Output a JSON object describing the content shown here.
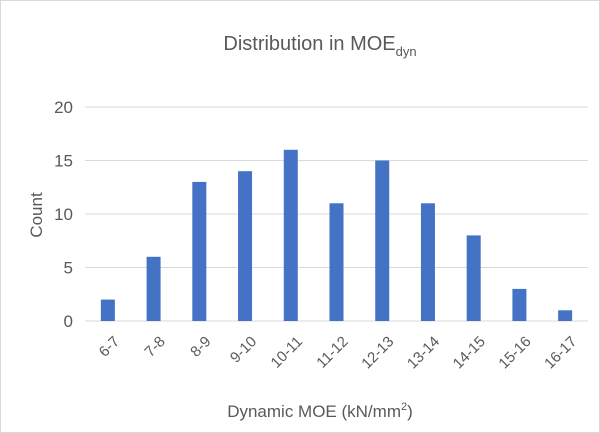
{
  "chart_data": {
    "type": "bar",
    "title": {
      "main": "Distribution in MOE",
      "subscript": "dyn"
    },
    "xlabel": {
      "main": "Dynamic MOE (kN/mm",
      "superscript": "2",
      "suffix": ")"
    },
    "ylabel": "Count",
    "categories": [
      "6-7",
      "7-8",
      "8-9",
      "9-10",
      "10-11",
      "11-12",
      "12-13",
      "13-14",
      "14-15",
      "15-16",
      "16-17"
    ],
    "values": [
      2,
      6,
      13,
      14,
      16,
      11,
      15,
      11,
      8,
      3,
      1
    ],
    "ylim": [
      0,
      20
    ],
    "yticks": [
      0,
      5,
      10,
      15,
      20
    ],
    "grid": true,
    "legend": "none",
    "bar_color": "#4472C4",
    "gridline_color": "#D9D9D9",
    "text_color": "#595959"
  }
}
